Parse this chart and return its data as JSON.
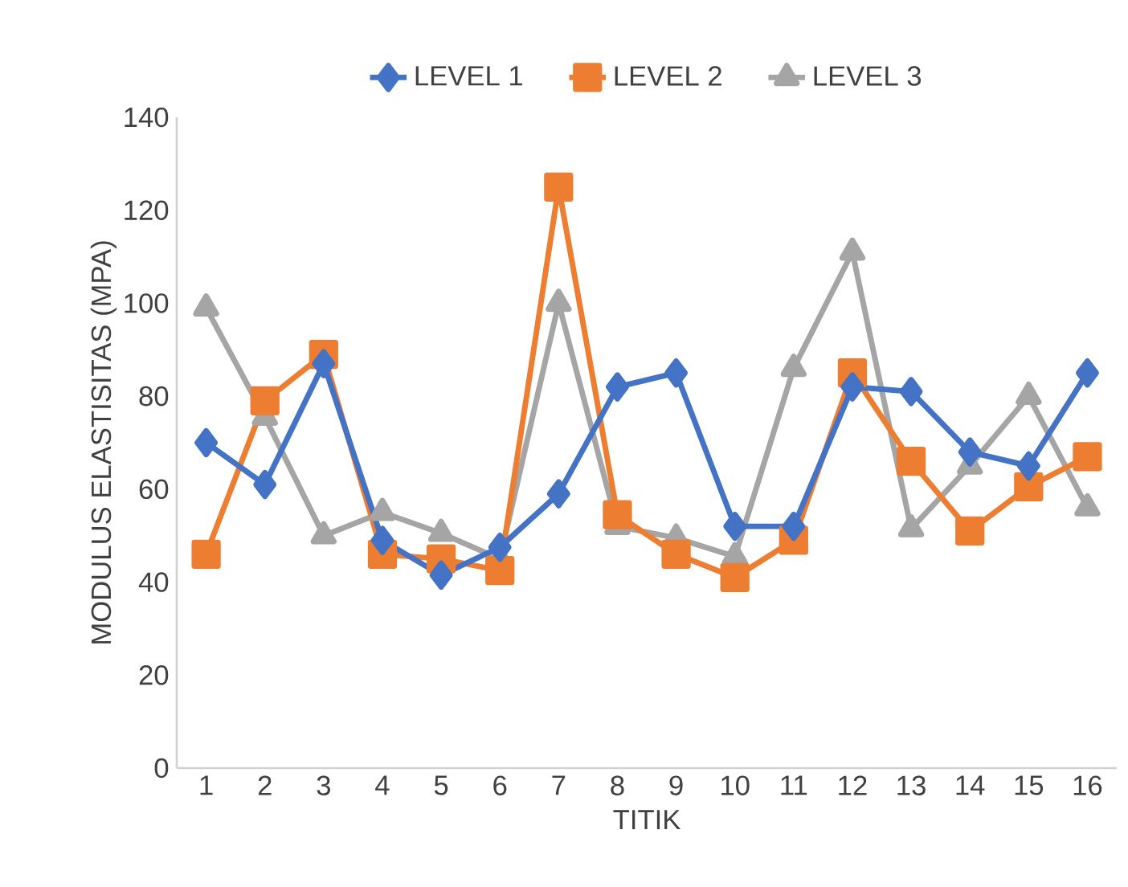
{
  "chart_data": {
    "type": "line",
    "xlabel": "TITIK",
    "ylabel": "MODULUS ELASTISITAS (MPA)",
    "categories": [
      "1",
      "2",
      "3",
      "4",
      "5",
      "6",
      "7",
      "8",
      "9",
      "10",
      "11",
      "12",
      "13",
      "14",
      "15",
      "16"
    ],
    "series": [
      {
        "name": "LEVEL 1",
        "color": "#4472c4",
        "marker": "diamond",
        "values": [
          70,
          61,
          87,
          49,
          41.5,
          47.5,
          59,
          82,
          85,
          52,
          52,
          82,
          81,
          68,
          65,
          85
        ]
      },
      {
        "name": "LEVEL 2",
        "color": "#ed7d31",
        "marker": "square",
        "values": [
          46,
          79,
          89,
          46,
          45,
          42.5,
          125,
          54.5,
          46,
          41,
          49,
          85,
          66,
          51,
          60.5,
          67
        ]
      },
      {
        "name": "LEVEL 3",
        "color": "#a5a5a5",
        "marker": "triangle",
        "values": [
          99,
          75.5,
          50,
          55,
          50.5,
          45,
          100,
          52,
          49.5,
          45.5,
          86,
          111,
          51.5,
          65,
          80,
          56
        ]
      }
    ],
    "ylim": [
      0,
      140
    ],
    "yticks": [
      0,
      20,
      40,
      60,
      80,
      100,
      120,
      140
    ],
    "legend": "top"
  }
}
